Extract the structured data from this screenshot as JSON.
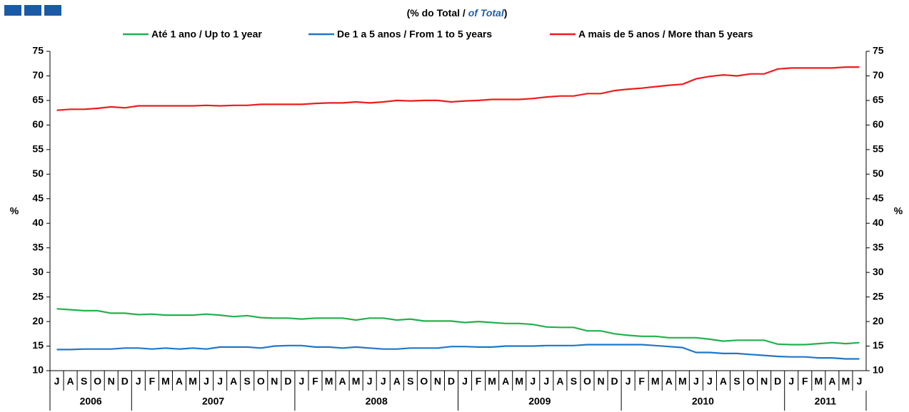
{
  "chart_data": {
    "type": "line",
    "title_parts": [
      "(% do Total /",
      "of Total",
      ")"
    ],
    "y_label": "%",
    "y2_label": "%",
    "categories": [
      "J",
      "A",
      "S",
      "O",
      "N",
      "D",
      "J",
      "F",
      "M",
      "A",
      "M",
      "J",
      "J",
      "A",
      "S",
      "O",
      "N",
      "D",
      "J",
      "F",
      "M",
      "A",
      "M",
      "J",
      "J",
      "A",
      "S",
      "O",
      "N",
      "D",
      "J",
      "F",
      "M",
      "A",
      "M",
      "J",
      "J",
      "A",
      "S",
      "O",
      "N",
      "D",
      "J",
      "F",
      "M",
      "A",
      "M",
      "J",
      "J",
      "A",
      "S",
      "O",
      "N",
      "D",
      "J",
      "F",
      "M",
      "A",
      "M",
      "J"
    ],
    "years": [
      "2006",
      "2007",
      "2008",
      "2009",
      "2010",
      "2011"
    ],
    "series": [
      {
        "name": "Até 1 ano / Up to 1 year",
        "color": "#22b14c",
        "values": [
          22.6,
          22.4,
          22.2,
          22.2,
          21.7,
          21.7,
          21.4,
          21.5,
          21.3,
          21.3,
          21.3,
          21.5,
          21.3,
          21.0,
          21.2,
          20.8,
          20.7,
          20.7,
          20.5,
          20.7,
          20.7,
          20.7,
          20.3,
          20.7,
          20.7,
          20.3,
          20.5,
          20.1,
          20.1,
          20.1,
          19.8,
          20.0,
          19.8,
          19.6,
          19.6,
          19.4,
          18.9,
          18.8,
          18.8,
          18.1,
          18.1,
          17.5,
          17.2,
          17.0,
          17.0,
          16.7,
          16.7,
          16.7,
          16.4,
          16.0,
          16.2,
          16.2,
          16.2,
          15.4,
          15.3,
          15.3,
          15.5,
          15.7,
          15.5,
          15.7
        ]
      },
      {
        "name": "De 1 a 5 anos / From 1 to 5 years",
        "color": "#1f77c9",
        "values": [
          14.3,
          14.3,
          14.4,
          14.4,
          14.4,
          14.6,
          14.6,
          14.4,
          14.6,
          14.4,
          14.6,
          14.4,
          14.8,
          14.8,
          14.8,
          14.6,
          15.0,
          15.1,
          15.1,
          14.8,
          14.8,
          14.6,
          14.8,
          14.6,
          14.4,
          14.4,
          14.6,
          14.6,
          14.6,
          14.9,
          14.9,
          14.8,
          14.8,
          15.0,
          15.0,
          15.0,
          15.1,
          15.1,
          15.1,
          15.3,
          15.3,
          15.3,
          15.3,
          15.3,
          15.1,
          14.9,
          14.7,
          13.7,
          13.7,
          13.5,
          13.5,
          13.3,
          13.1,
          12.9,
          12.8,
          12.8,
          12.6,
          12.6,
          12.4,
          12.4
        ]
      },
      {
        "name": "A mais de 5 anos / More than 5 years",
        "color": "#ee1c1c",
        "values": [
          63.0,
          63.2,
          63.2,
          63.4,
          63.7,
          63.5,
          63.9,
          63.9,
          63.9,
          63.9,
          63.9,
          64.0,
          63.9,
          64.0,
          64.0,
          64.2,
          64.2,
          64.2,
          64.2,
          64.4,
          64.5,
          64.5,
          64.7,
          64.5,
          64.7,
          65.0,
          64.9,
          65.0,
          65.0,
          64.7,
          64.9,
          65.0,
          65.2,
          65.2,
          65.2,
          65.4,
          65.7,
          65.9,
          65.9,
          66.4,
          66.4,
          67.0,
          67.3,
          67.5,
          67.8,
          68.1,
          68.3,
          69.4,
          69.9,
          70.2,
          70.0,
          70.4,
          70.4,
          71.4,
          71.6,
          71.6,
          71.6,
          71.6,
          71.8,
          71.8
        ]
      }
    ],
    "ylim": [
      10,
      75
    ],
    "yticks": [
      10,
      15,
      20,
      25,
      30,
      35,
      40,
      45,
      50,
      55,
      60,
      65,
      70,
      75
    ],
    "y2lim": [
      10,
      75
    ],
    "y2ticks": [
      10,
      15,
      20,
      25,
      30,
      35,
      40,
      45,
      50,
      55,
      60,
      65,
      70,
      75
    ],
    "legend": "top"
  }
}
